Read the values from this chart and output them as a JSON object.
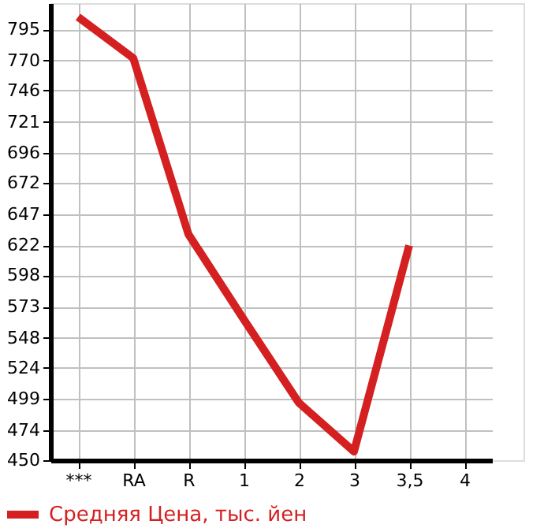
{
  "chart_data": {
    "type": "line",
    "categories": [
      "***",
      "RA",
      "R",
      "1",
      "2",
      "3",
      "3,5",
      "4"
    ],
    "series": [
      {
        "name": "Средняя Цена, тыс. йен",
        "color": "#d42020",
        "values": [
          805,
          772,
          631,
          563,
          496,
          457,
          622,
          null
        ]
      }
    ],
    "ylim": [
      450,
      816
    ],
    "yticks": [
      450,
      474,
      499,
      524,
      548,
      573,
      598,
      622,
      647,
      672,
      696,
      721,
      746,
      770,
      795
    ],
    "grid": true,
    "legend": "bottom left",
    "marker": "none",
    "line_style": "solid"
  }
}
